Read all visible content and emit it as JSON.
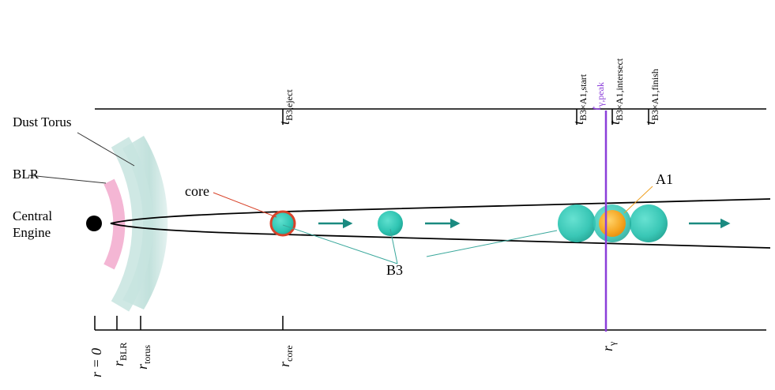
{
  "labels": {
    "dust_torus": "Dust Torus",
    "blr": "BLR",
    "central_engine_line1": "Central",
    "central_engine_line2": "Engine",
    "core": "core",
    "b3": "B3",
    "a1": "A1"
  },
  "time_axis": {
    "ticks": [
      {
        "main": "t",
        "sub": "B3,eject"
      },
      {
        "main": "t",
        "sub": "B3×A1,start"
      },
      {
        "main": "t",
        "sub": "γ,peak"
      },
      {
        "main": "t",
        "sub": "B3×A1,intersect"
      },
      {
        "main": "t",
        "sub": "B3×A1,finish"
      }
    ]
  },
  "radius_axis": {
    "r0": "r = 0",
    "blr": {
      "main": "r",
      "sub": "BLR"
    },
    "torus": {
      "main": "r",
      "sub": "torus"
    },
    "core": {
      "main": "r",
      "sub": "core"
    },
    "gamma": {
      "main": "r",
      "sub": "γ"
    }
  },
  "colors": {
    "blob": "#2fc4b2",
    "blob_dark": "#1a9e8e",
    "core_ring": "#d8432a",
    "a1_blob": "#f5a623",
    "gamma_line": "#8b3fd9",
    "blr": "#f4b6d4",
    "torus": "#b9dcd6",
    "arrow": "#1a8a80",
    "leader_teal": "#3aa89c",
    "leader_orange": "#f0a020",
    "leader_red": "#d8432a"
  }
}
